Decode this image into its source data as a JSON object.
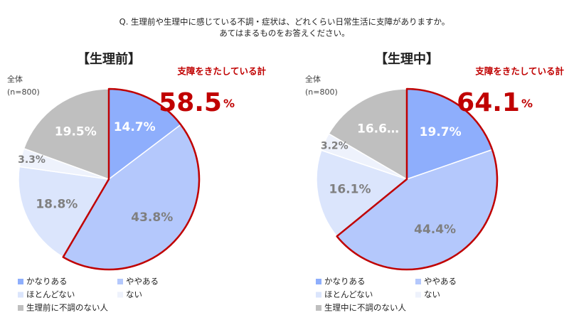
{
  "header": {
    "lines": [
      "Q. 生理前や生理中に感じている不調・症状は、どれくらい日常生活に支障がありますか。",
      "あてはまるものをお答えください。"
    ]
  },
  "chart_data": [
    {
      "type": "pie",
      "title": "【生理前】",
      "sample": [
        "全体",
        "(n=800)"
      ],
      "categories": [
        "かなりある",
        "ややある",
        "ほとんどない",
        "ない",
        "生理前に不調のない人"
      ],
      "values": [
        14.7,
        43.8,
        18.8,
        3.3,
        19.5
      ],
      "value_labels": [
        "14.7%",
        "43.8%",
        "18.8%",
        "3.3%",
        "19.5%"
      ],
      "colors": [
        "#8eaefc",
        "#b4c8fc",
        "#dbe5fc",
        "#eef2fc",
        "#bfbfbf"
      ],
      "highlight": {
        "label": "支障をきたしている計",
        "value": 58.5,
        "unit": "%",
        "color": "#c00000"
      }
    },
    {
      "type": "pie",
      "title": "【生理中】",
      "sample": [
        "全体",
        "(n=800)"
      ],
      "categories": [
        "かなりある",
        "ややある",
        "ほとんどない",
        "ない",
        "生理中に不調のない人"
      ],
      "values": [
        19.7,
        44.4,
        16.1,
        3.2,
        16.6
      ],
      "value_labels": [
        "19.7%",
        "44.4%",
        "16.1%",
        "3.2%",
        "16.6…"
      ],
      "colors": [
        "#8eaefc",
        "#b4c8fc",
        "#dbe5fc",
        "#eef2fc",
        "#bfbfbf"
      ],
      "highlight": {
        "label": "支障をきたしている計",
        "value": 64.1,
        "unit": "%",
        "color": "#c00000"
      }
    }
  ]
}
